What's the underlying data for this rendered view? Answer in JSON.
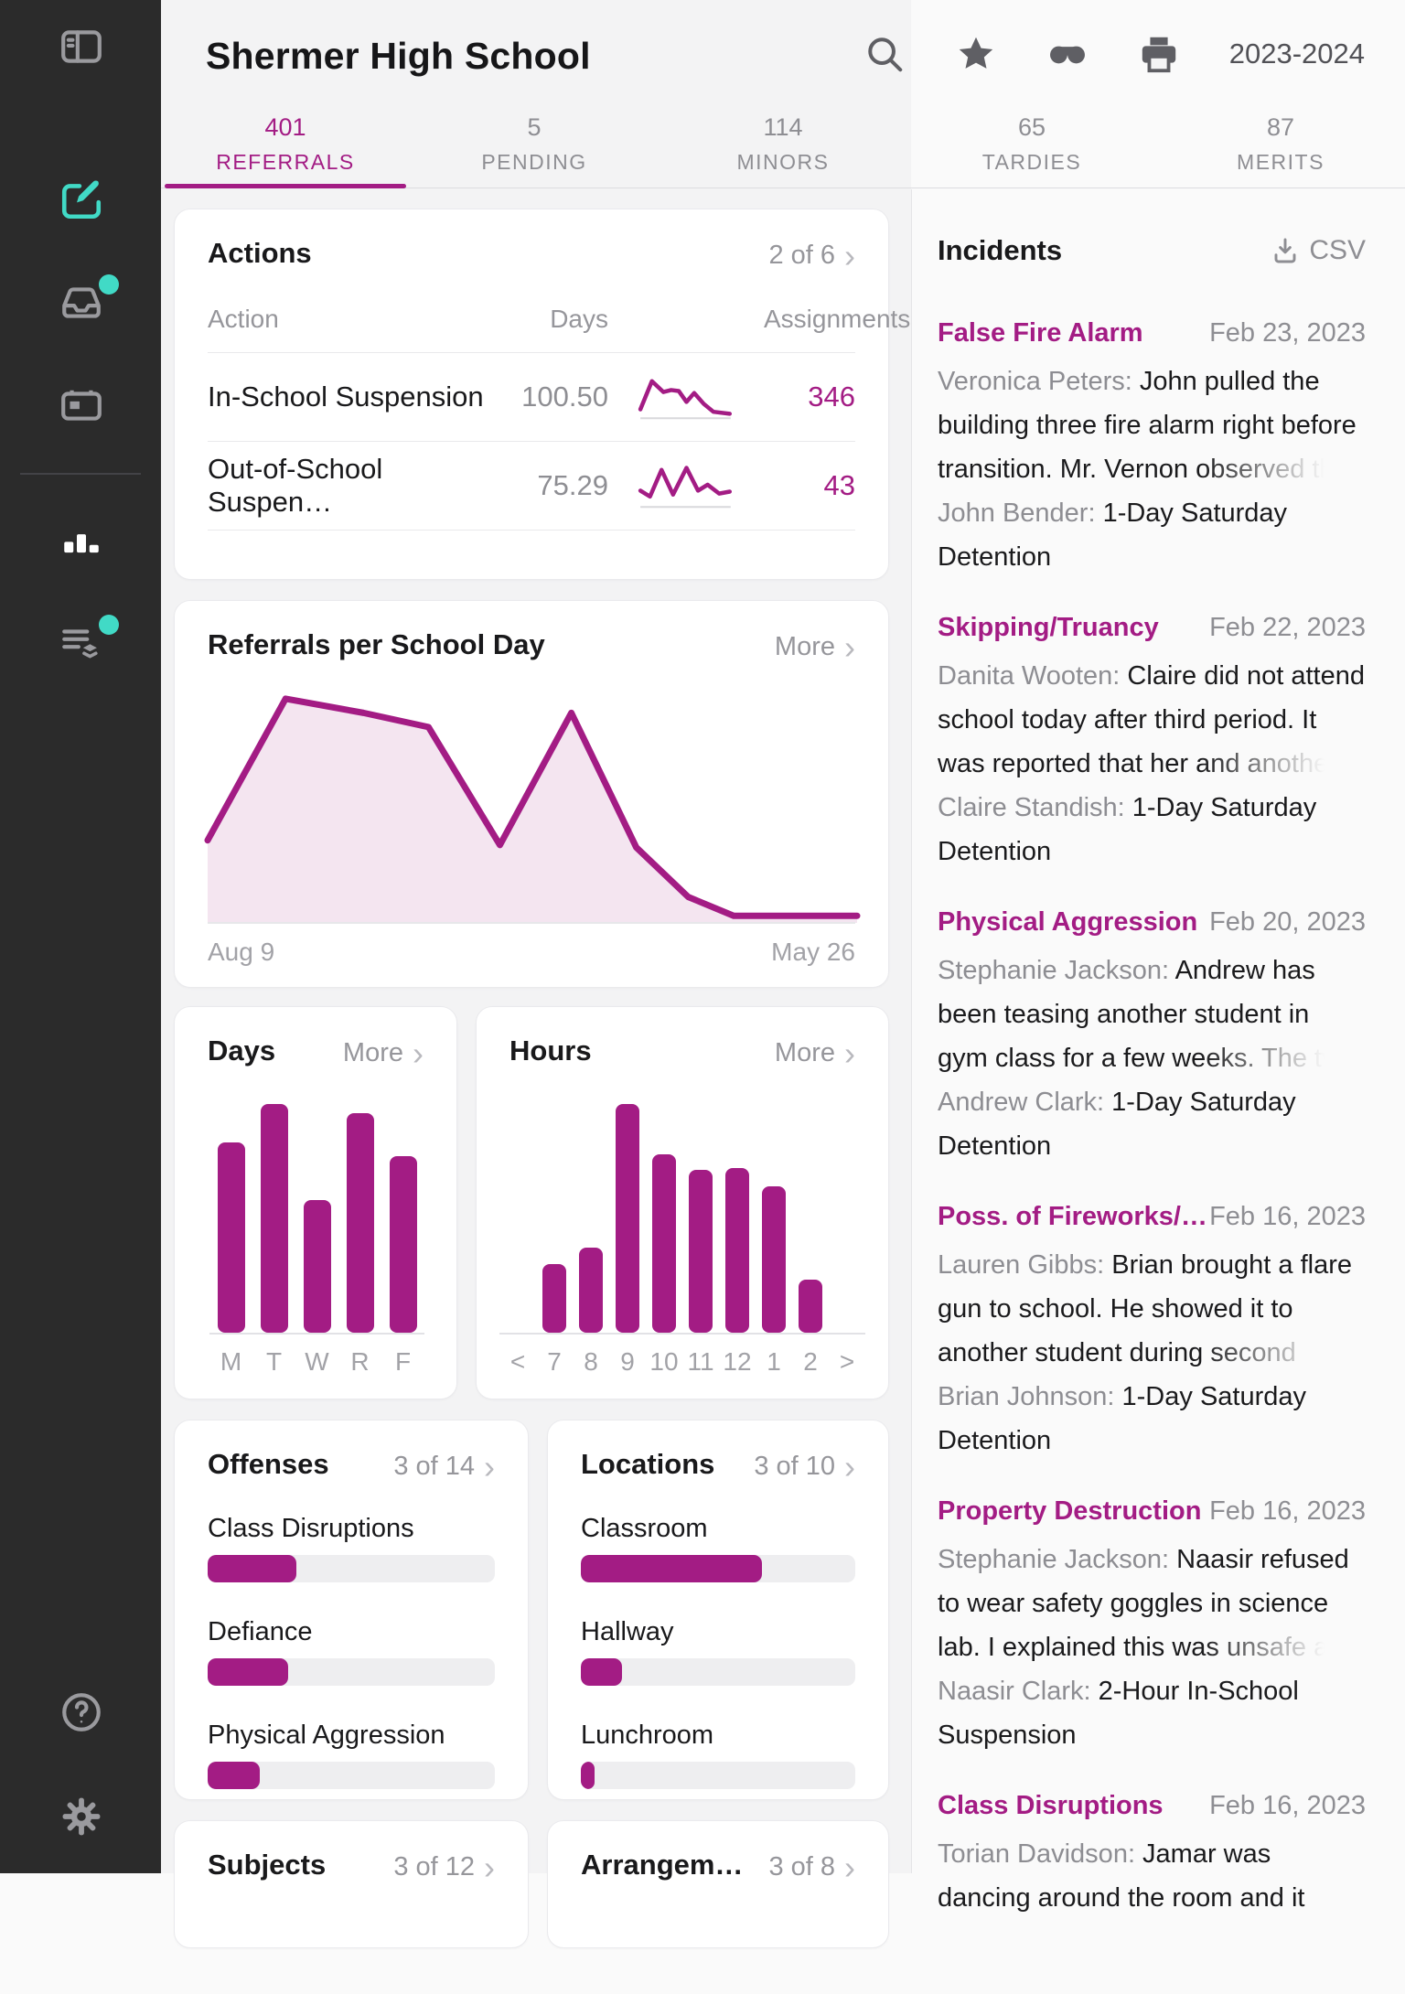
{
  "ui": {
    "chevron": "›"
  },
  "sidebar": {
    "icons": [
      "sidebar-toggle",
      "compose",
      "notifications-tray",
      "calendar",
      "analytics",
      "tasks",
      "help",
      "settings"
    ],
    "active_icon": "analytics",
    "accent_color": "#41DAC6",
    "background_color": "#2B2B2B"
  },
  "header": {
    "title": "Shermer High School",
    "year": "2023-2024",
    "icons": [
      "search-icon",
      "star-icon",
      "mask-icon",
      "print-icon"
    ]
  },
  "tabs": [
    {
      "count": "401",
      "label": "REFERRALS",
      "active": true
    },
    {
      "count": "5",
      "label": "PENDING",
      "active": false
    },
    {
      "count": "114",
      "label": "MINORS",
      "active": false
    },
    {
      "count": "65",
      "label": "TARDIES",
      "active": false
    },
    {
      "count": "87",
      "label": "MERITS",
      "active": false
    }
  ],
  "accent_color": "#A31C84",
  "actions": {
    "title": "Actions",
    "pager": "2 of 6",
    "columns": [
      "Action",
      "Days",
      "Assignments"
    ],
    "rows": [
      {
        "name": "In-School Suspension",
        "days": "100.50",
        "count": "346",
        "spark": "spark_in_school"
      },
      {
        "name": "Out-of-School Suspen…",
        "days": "75.29",
        "count": "43",
        "spark": "spark_out_school"
      }
    ]
  },
  "referrals": {
    "title": "Referrals per School Day",
    "more": "More",
    "x_start": "Aug 9",
    "x_end": "May 26"
  },
  "days": {
    "title": "Days",
    "more": "More"
  },
  "hours": {
    "title": "Hours",
    "more": "More"
  },
  "offenses": {
    "title": "Offenses",
    "pager": "3 of 14"
  },
  "locations": {
    "title": "Locations",
    "pager": "3 of 10"
  },
  "subjects": {
    "title": "Subjects",
    "pager": "3 of 12"
  },
  "arrangements": {
    "title": "Arrangem…",
    "pager": "3 of 8"
  },
  "incidents": {
    "title": "Incidents",
    "csv_label": "CSV",
    "items": [
      {
        "type": "False Fire Alarm",
        "date": "Feb 23, 2023",
        "reporter": "Veronica Peters:",
        "description": "John pulled the building three fire alarm right before transition. Mr. Vernon observed the",
        "student": "John Bender:",
        "consequence": "1-Day Saturday Detention"
      },
      {
        "type": "Skipping/Truancy",
        "date": "Feb 22, 2023",
        "reporter": "Danita Wooten:",
        "description": "Claire did not attend school today after third period. It was reported that her and another",
        "student": "Claire Standish:",
        "consequence": "1-Day Saturday Detention"
      },
      {
        "type": "Physical Aggression",
        "date": "Feb 20, 2023",
        "reporter": "Stephanie Jackson:",
        "description": "Andrew has been teasing another student in gym class for a few weeks. The two got",
        "student": "Andrew Clark:",
        "consequence": "1-Day Saturday Detention"
      },
      {
        "type": "Poss. of Fireworks/…",
        "date": "Feb 16, 2023",
        "reporter": "Lauren Gibbs:",
        "description": "Brian brought a flare gun to school. He showed it to another student during second",
        "student": "Brian Johnson:",
        "consequence": "1-Day Saturday Detention"
      },
      {
        "type": "Property Destruction",
        "date": "Feb 16, 2023",
        "reporter": "Stephanie Jackson:",
        "description": "Naasir refused to wear safety goggles in science lab. I explained this was unsafe and",
        "student": "Naasir Clark:",
        "consequence": "2-Hour In-School Suspension"
      },
      {
        "type": "Class Disruptions",
        "date": "Feb 16, 2023",
        "reporter": "Torian Davidson:",
        "description": "Jamar was dancing around the room and it",
        "student": "",
        "consequence": ""
      }
    ]
  },
  "chart_data": [
    {
      "id": "referrals_per_day",
      "type": "area",
      "title": "Referrals per School Day",
      "x_range": [
        "Aug 9",
        "May 26"
      ],
      "grid": false,
      "legend": false,
      "points_norm": [
        [
          0,
          65
        ],
        [
          12,
          5
        ],
        [
          24,
          11
        ],
        [
          34,
          17
        ],
        [
          45,
          67
        ],
        [
          56,
          11
        ],
        [
          66,
          68
        ],
        [
          74,
          89
        ],
        [
          81,
          97
        ],
        [
          100,
          97
        ]
      ],
      "note": "x,y in percent of plot box; y measured from top; no numeric axis shown"
    },
    {
      "id": "spark_in_school",
      "type": "line",
      "label": "In-School Suspension assignments trend",
      "points_norm": [
        [
          2,
          75
        ],
        [
          14,
          18
        ],
        [
          26,
          40
        ],
        [
          34,
          36
        ],
        [
          42,
          38
        ],
        [
          50,
          60
        ],
        [
          58,
          42
        ],
        [
          68,
          64
        ],
        [
          78,
          80
        ],
        [
          95,
          84
        ]
      ]
    },
    {
      "id": "spark_out_school",
      "type": "line",
      "label": "Out-of-School Suspension assignments trend",
      "points_norm": [
        [
          2,
          60
        ],
        [
          12,
          72
        ],
        [
          24,
          18
        ],
        [
          36,
          68
        ],
        [
          50,
          14
        ],
        [
          62,
          60
        ],
        [
          72,
          48
        ],
        [
          84,
          66
        ],
        [
          95,
          62
        ]
      ]
    },
    {
      "id": "days",
      "type": "bar",
      "title": "Days",
      "categories": [
        "M",
        "T",
        "W",
        "R",
        "F"
      ],
      "values_pct_of_max": [
        83,
        100,
        58,
        96,
        77
      ]
    },
    {
      "id": "hours",
      "type": "bar",
      "title": "Hours",
      "categories": [
        "7",
        "8",
        "9",
        "10",
        "11",
        "12",
        "1",
        "2"
      ],
      "values_pct_of_max": [
        30,
        37,
        100,
        78,
        71,
        72,
        64,
        23
      ],
      "nav": [
        "<",
        ">"
      ]
    },
    {
      "id": "offenses",
      "type": "hbar",
      "title": "Offenses",
      "categories": [
        "Class Disruptions",
        "Defiance",
        "Physical Aggression"
      ],
      "values_pct": [
        31,
        28,
        18
      ]
    },
    {
      "id": "locations",
      "type": "hbar",
      "title": "Locations",
      "categories": [
        "Classroom",
        "Hallway",
        "Lunchroom"
      ],
      "values_pct": [
        66,
        15,
        5
      ]
    }
  ]
}
